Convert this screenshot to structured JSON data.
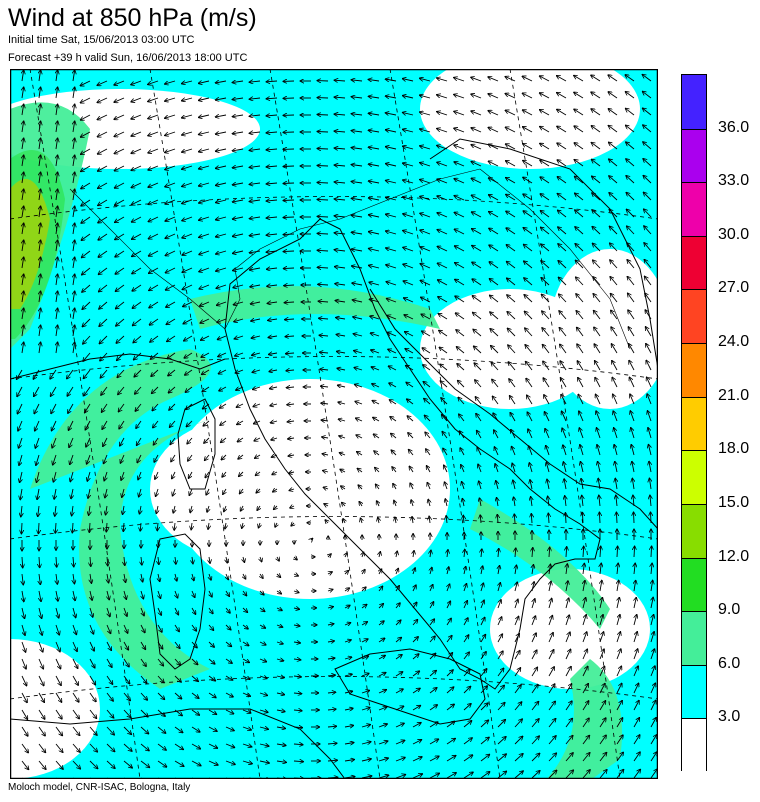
{
  "header": {
    "title": "Wind at 850 hPa (m/s)",
    "initial_time": "Initial time  Sat, 15/06/2013 03:00 UTC",
    "forecast_line": "Forecast +39 h valid  Sun, 16/06/2013 18:00 UTC"
  },
  "footer": {
    "credit": "Moloch model, CNR-ISAC, Bologna, Italy"
  },
  "colorbar": {
    "labels": [
      "36.0",
      "33.0",
      "30.0",
      "27.0",
      "24.0",
      "21.0",
      "18.0",
      "15.0",
      "12.0",
      "9.0",
      "6.0",
      "3.0"
    ],
    "colors_top_to_bottom": [
      "#4422ff",
      "#aa00ee",
      "#ee00aa",
      "#ee0033",
      "#ff4422",
      "#ff8800",
      "#ffcc00",
      "#ccff00",
      "#88dd00",
      "#22dd22",
      "#44ee99",
      "#00ffff",
      "#ffffff"
    ]
  },
  "map": {
    "colors": {
      "calm": "#ffffff",
      "band_3_6": "#00ffff",
      "band_6_9": "#44ee99",
      "band_9_12": "#22dd22",
      "band_18_21": "#ffcc00",
      "coast": "#000000",
      "arrows": "#000000",
      "gridlines": "#000000"
    },
    "features": [
      "wind vectors",
      "coastlines",
      "national borders",
      "latitude/longitude grid (dashed)"
    ]
  }
}
